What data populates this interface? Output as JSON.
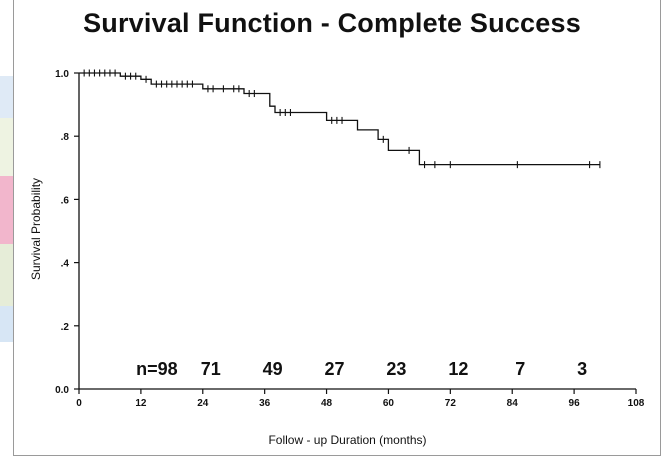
{
  "chart_data": {
    "type": "line",
    "title": "Survival Function - Complete Success",
    "xlabel": "Follow - up Duration (months)",
    "ylabel": "Survival Probability",
    "xlim": [
      0,
      108
    ],
    "ylim": [
      0,
      1
    ],
    "x_ticks": [
      {
        "value": 0,
        "label": "0"
      },
      {
        "value": 12,
        "label": "12"
      },
      {
        "value": 24,
        "label": "24"
      },
      {
        "value": 36,
        "label": "36"
      },
      {
        "value": 48,
        "label": "48"
      },
      {
        "value": 60,
        "label": "60"
      },
      {
        "value": 72,
        "label": "72"
      },
      {
        "value": 84,
        "label": "84"
      },
      {
        "value": 96,
        "label": "96"
      },
      {
        "value": 108,
        "label": "108"
      }
    ],
    "y_ticks": [
      {
        "value": 0,
        "label": "0.0"
      },
      {
        "value": 0.2,
        "label": ".2"
      },
      {
        "value": 0.4,
        "label": ".4"
      },
      {
        "value": 0.6,
        "label": ".6"
      },
      {
        "value": 0.8,
        "label": ".8"
      },
      {
        "value": 1.0,
        "label": "1.0"
      }
    ],
    "grid": false,
    "series": [
      {
        "step_points": [
          [
            0,
            1.0
          ],
          [
            8,
            1.0
          ],
          [
            8,
            0.99
          ],
          [
            12,
            0.99
          ],
          [
            12,
            0.98
          ],
          [
            14,
            0.98
          ],
          [
            14,
            0.965
          ],
          [
            24,
            0.965
          ],
          [
            24,
            0.95
          ],
          [
            32,
            0.95
          ],
          [
            32,
            0.935
          ],
          [
            37,
            0.935
          ],
          [
            37,
            0.895
          ],
          [
            38,
            0.895
          ],
          [
            38,
            0.875
          ],
          [
            48,
            0.875
          ],
          [
            48,
            0.85
          ],
          [
            54,
            0.85
          ],
          [
            54,
            0.82
          ],
          [
            58,
            0.82
          ],
          [
            58,
            0.79
          ],
          [
            60,
            0.79
          ],
          [
            60,
            0.755
          ],
          [
            66,
            0.755
          ],
          [
            66,
            0.71
          ],
          [
            101,
            0.71
          ]
        ],
        "censor_marks": [
          [
            1,
            1.0
          ],
          [
            2,
            1.0
          ],
          [
            3,
            1.0
          ],
          [
            4,
            1.0
          ],
          [
            5,
            1.0
          ],
          [
            6,
            1.0
          ],
          [
            7,
            1.0
          ],
          [
            9,
            0.99
          ],
          [
            10,
            0.99
          ],
          [
            11,
            0.99
          ],
          [
            13,
            0.98
          ],
          [
            15,
            0.965
          ],
          [
            16,
            0.965
          ],
          [
            17,
            0.965
          ],
          [
            18,
            0.965
          ],
          [
            19,
            0.965
          ],
          [
            20,
            0.965
          ],
          [
            21,
            0.965
          ],
          [
            22,
            0.965
          ],
          [
            25,
            0.95
          ],
          [
            26,
            0.95
          ],
          [
            28,
            0.95
          ],
          [
            30,
            0.95
          ],
          [
            31,
            0.95
          ],
          [
            33,
            0.935
          ],
          [
            34,
            0.935
          ],
          [
            39,
            0.875
          ],
          [
            40,
            0.875
          ],
          [
            41,
            0.875
          ],
          [
            49,
            0.85
          ],
          [
            50,
            0.85
          ],
          [
            51,
            0.85
          ],
          [
            59,
            0.79
          ],
          [
            64,
            0.755
          ],
          [
            67,
            0.71
          ],
          [
            69,
            0.71
          ],
          [
            72,
            0.71
          ],
          [
            85,
            0.71
          ],
          [
            99,
            0.71
          ],
          [
            101,
            0.71
          ]
        ]
      }
    ],
    "risk_table": [
      {
        "x": 12,
        "label": "n=98"
      },
      {
        "x": 24,
        "label": "71"
      },
      {
        "x": 36,
        "label": "49"
      },
      {
        "x": 48,
        "label": "27"
      },
      {
        "x": 60,
        "label": "23"
      },
      {
        "x": 72,
        "label": "12"
      },
      {
        "x": 84,
        "label": "7"
      },
      {
        "x": 96,
        "label": "3"
      }
    ],
    "colors": {
      "line": "#111111",
      "edge_strips": [
        "#dfeaf6",
        "#eef3e2",
        "#f2b6cc",
        "#e6edd8",
        "#d7e6f5"
      ]
    }
  }
}
